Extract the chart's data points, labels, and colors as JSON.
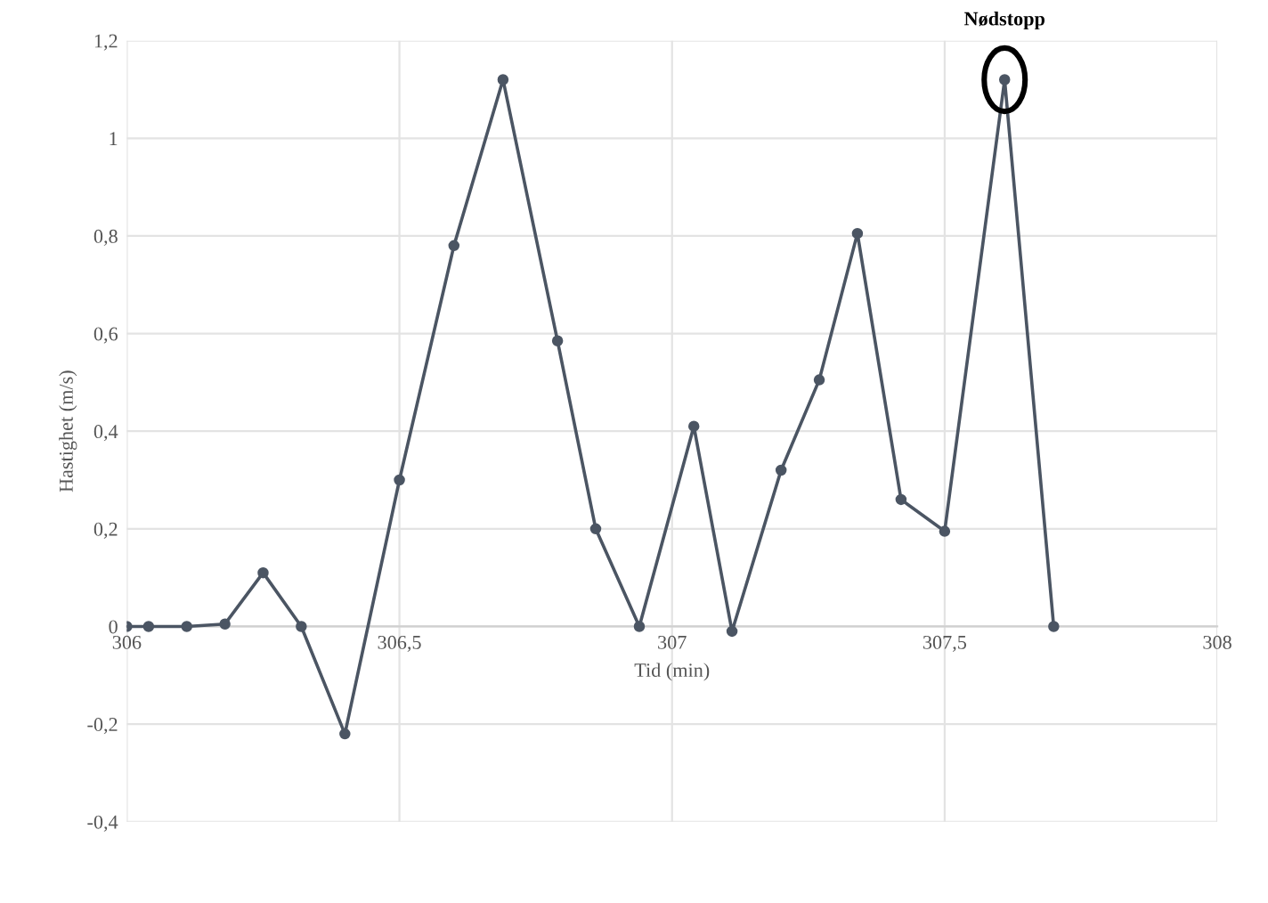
{
  "chart_data": {
    "type": "line",
    "xlabel": "Tid (min)",
    "ylabel": "Hastighet (m/s)",
    "x": [
      306.0,
      306.04,
      306.11,
      306.18,
      306.25,
      306.32,
      306.4,
      306.5,
      306.6,
      306.69,
      306.79,
      306.86,
      306.94,
      307.04,
      307.11,
      307.2,
      307.27,
      307.34,
      307.42,
      307.5,
      307.61,
      307.7
    ],
    "series": [
      {
        "color": "#4b5563",
        "values": [
          0,
          0,
          0,
          0.005,
          0.11,
          0,
          -0.22,
          0.3,
          0.78,
          1.12,
          0.585,
          0.2,
          0,
          0.41,
          -0.01,
          0.32,
          0.505,
          0.805,
          0.26,
          0.195,
          1.12,
          0
        ]
      }
    ],
    "xlim": [
      306,
      308
    ],
    "ylim": [
      -0.4,
      1.2
    ],
    "xticks": [
      306,
      {
        "value": 306.5,
        "label": "306,5"
      },
      307,
      {
        "value": 307.5,
        "label": "307,5"
      },
      308
    ],
    "yticks": [
      {
        "value": -0.4,
        "label": "-0,4"
      },
      {
        "value": -0.2,
        "label": "-0,2"
      },
      0,
      {
        "value": 0.2,
        "label": "0,2"
      },
      {
        "value": 0.4,
        "label": "0,4"
      },
      {
        "value": 0.6,
        "label": "0,6"
      },
      {
        "value": 0.8,
        "label": "0,8"
      },
      1,
      {
        "value": 1.2,
        "label": "1,2"
      }
    ],
    "grid": true,
    "marker": "circle",
    "line_style": "solid",
    "annotations": [
      {
        "text": "Nødstopp",
        "x": 307.61,
        "y": 1.12
      }
    ]
  }
}
